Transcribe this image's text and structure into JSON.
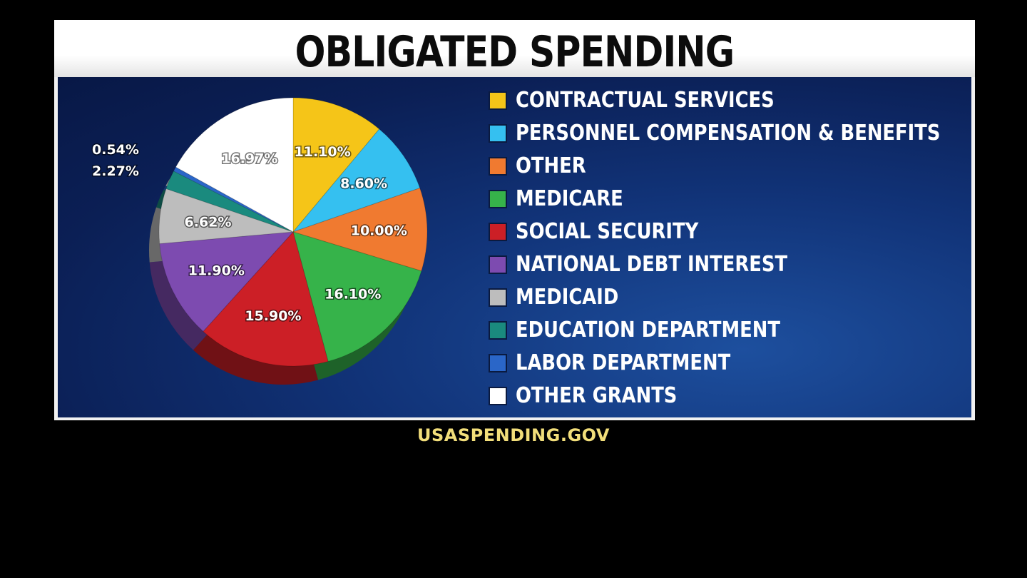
{
  "chart_data": {
    "type": "pie",
    "title": "OBLIGATED SPENDING",
    "source": "USASPENDING.GOV",
    "legend_position": "right",
    "slices": [
      {
        "name": "CONTRACTUAL SERVICES",
        "value": 11.1,
        "label": "11.10%",
        "color": "#f5c518"
      },
      {
        "name": "PERSONNEL COMPENSATION & BENEFITS",
        "value": 8.6,
        "label": "8.60%",
        "color": "#35c0f0"
      },
      {
        "name": "OTHER",
        "value": 10.0,
        "label": "10.00%",
        "color": "#f07a30"
      },
      {
        "name": "MEDICARE",
        "value": 16.1,
        "label": "16.10%",
        "color": "#36b34a"
      },
      {
        "name": "SOCIAL SECURITY",
        "value": 15.9,
        "label": "15.90%",
        "color": "#cc1f26"
      },
      {
        "name": "NATIONAL DEBT INTEREST",
        "value": 11.9,
        "label": "11.90%",
        "color": "#7d4bb0"
      },
      {
        "name": "MEDICAID",
        "value": 6.62,
        "label": "6.62%",
        "color": "#bdbdbd"
      },
      {
        "name": "EDUCATION DEPARTMENT",
        "value": 2.27,
        "label": "2.27%",
        "color": "#1a8a7e"
      },
      {
        "name": "LABOR DEPARTMENT",
        "value": 0.54,
        "label": "0.54%",
        "color": "#2a66c8"
      },
      {
        "name": "OTHER GRANTS",
        "value": 16.97,
        "label": "16.97%",
        "color": "#ffffff"
      }
    ]
  }
}
